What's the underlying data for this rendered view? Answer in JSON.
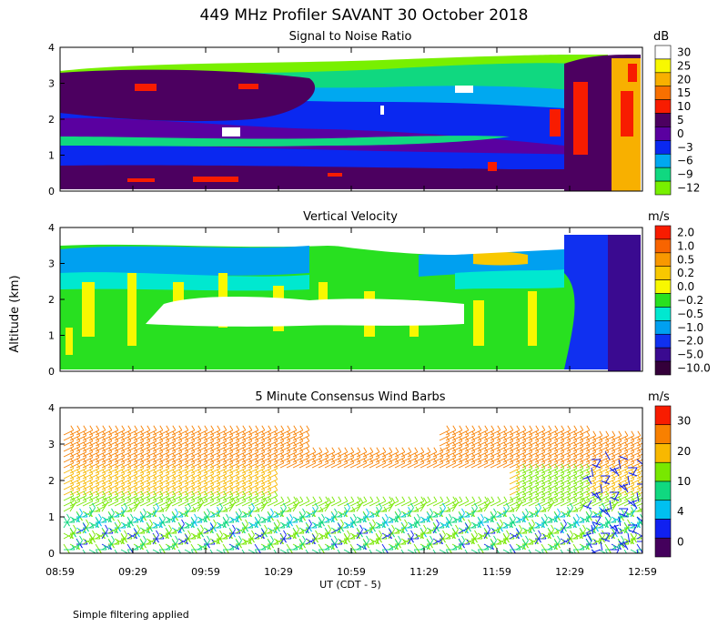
{
  "title": "449 MHz Profiler SAVANT 30 October 2018",
  "y_label": "Altitude (km)",
  "x_label": "UT  (CDT - 5)",
  "x_ticks": [
    "08:59",
    "09:29",
    "09:59",
    "10:29",
    "10:59",
    "11:29",
    "11:59",
    "12:29",
    "12:59"
  ],
  "footer": "Simple filtering applied",
  "chart_data": [
    {
      "type": "heatmap",
      "title": "Signal to Noise Ratio",
      "xlabel": "UT  (CDT - 5)",
      "ylabel": "Altitude (km)",
      "xlim": [
        "08:59",
        "12:59"
      ],
      "ylim": [
        0,
        4
      ],
      "y_ticks": [
        "0",
        "1",
        "2",
        "3",
        "4"
      ],
      "colorbar": {
        "unit": "dB",
        "labels": [
          "30",
          "25",
          "20",
          "15",
          "10",
          "5",
          "0",
          "−3",
          "−6",
          "−9",
          "−12"
        ],
        "colors": [
          "#ffffff",
          "#f8f800",
          "#f8b000",
          "#f87000",
          "#f81c00",
          "#4c0060",
          "#5a00a0",
          "#0a28f0",
          "#00a8f0",
          "#10d880",
          "#78f000"
        ]
      }
    },
    {
      "type": "heatmap",
      "title": "Vertical Velocity",
      "xlabel": "UT  (CDT - 5)",
      "ylabel": "Altitude (km)",
      "xlim": [
        "08:59",
        "12:59"
      ],
      "ylim": [
        0,
        4
      ],
      "y_ticks": [
        "0",
        "1",
        "2",
        "3",
        "4"
      ],
      "colorbar": {
        "unit": "m/s",
        "labels": [
          "2.0",
          "1.0",
          "0.5",
          "0.2",
          "0.0",
          "−0.2",
          "−0.5",
          "−1.0",
          "−2.0",
          "−5.0",
          "−10.0"
        ],
        "colors": [
          "#f81c00",
          "#f86400",
          "#f89800",
          "#f8c800",
          "#f8f800",
          "#28e020",
          "#00e8d0",
          "#00a0f0",
          "#1030f0",
          "#3a0a90",
          "#34003a"
        ]
      }
    },
    {
      "type": "wind-barbs",
      "title": "5 Minute Consensus Wind Barbs",
      "xlabel": "UT  (CDT - 5)",
      "ylabel": "Altitude (km)",
      "xlim": [
        "08:59",
        "12:59"
      ],
      "ylim": [
        0,
        4
      ],
      "y_ticks": [
        "0",
        "1",
        "2",
        "3",
        "4"
      ],
      "colorbar": {
        "unit": "m/s",
        "labels": [
          "30",
          "20",
          "10",
          "4",
          "0"
        ],
        "colors": [
          "#f81c00",
          "#f88000",
          "#f8b800",
          "#78e800",
          "#10d880",
          "#00c0f0",
          "#1020f0",
          "#44005c"
        ]
      }
    }
  ]
}
